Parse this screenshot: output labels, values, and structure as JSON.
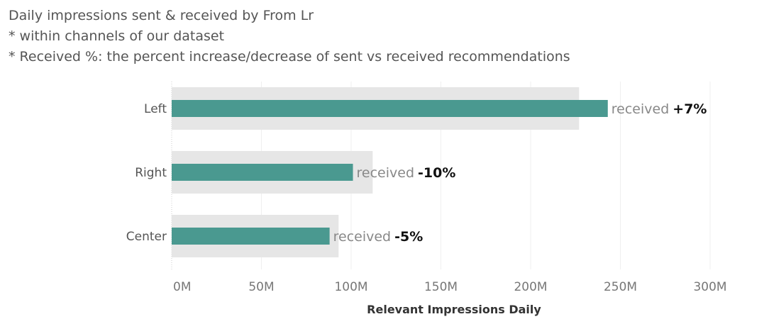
{
  "chart_data": {
    "type": "bar",
    "orientation": "horizontal",
    "title": "Daily impressions sent & received by From Lr",
    "subtitle_lines": [
      "* within channels of our dataset",
      "* Received %: the percent increase/decrease of sent vs received recommendations"
    ],
    "categories": [
      "Left",
      "Right",
      "Center"
    ],
    "series": [
      {
        "values": [
          227,
          112,
          93
        ],
        "color": "#e6e6e6"
      },
      {
        "values": [
          243,
          101,
          88
        ],
        "color": "#4a9990"
      }
    ],
    "annotations": [
      {
        "prefix": "received",
        "value": "+7%"
      },
      {
        "prefix": "received",
        "value": "-10%"
      },
      {
        "prefix": "received",
        "value": "-5%"
      }
    ],
    "xticks": [
      "0M",
      "50M",
      "100M",
      "150M",
      "200M",
      "250M",
      "300M"
    ],
    "xtick_values": [
      0,
      50,
      100,
      150,
      200,
      250,
      300
    ],
    "xlabel": "Relevant Impressions Daily",
    "xlim": [
      0,
      300
    ],
    "grid": true
  }
}
